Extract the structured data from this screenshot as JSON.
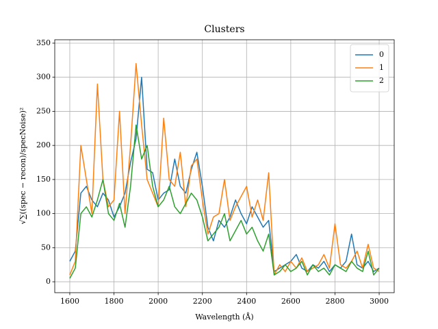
{
  "chart_data": {
    "type": "line",
    "title": "Clusters",
    "xlabel": "Wavelength (Å)",
    "ylabel": "√∑((spec − recon)/specNoise)²",
    "x": [
      1600,
      1625,
      1650,
      1675,
      1700,
      1725,
      1750,
      1775,
      1800,
      1825,
      1850,
      1875,
      1900,
      1925,
      1950,
      1975,
      2000,
      2025,
      2050,
      2075,
      2100,
      2125,
      2150,
      2175,
      2200,
      2225,
      2250,
      2275,
      2300,
      2325,
      2350,
      2375,
      2400,
      2425,
      2450,
      2475,
      2500,
      2525,
      2550,
      2575,
      2600,
      2625,
      2650,
      2675,
      2700,
      2725,
      2750,
      2775,
      2800,
      2825,
      2850,
      2875,
      2900,
      2925,
      2950,
      2975,
      3000
    ],
    "series": [
      {
        "name": "0",
        "color": "#1f77b4",
        "values": [
          30,
          45,
          130,
          140,
          120,
          110,
          130,
          120,
          95,
          110,
          130,
          175,
          210,
          300,
          165,
          160,
          120,
          130,
          135,
          180,
          140,
          130,
          165,
          190,
          140,
          80,
          60,
          90,
          80,
          95,
          120,
          100,
          85,
          110,
          95,
          80,
          90,
          15,
          20,
          25,
          30,
          40,
          20,
          15,
          25,
          20,
          30,
          15,
          25,
          20,
          30,
          70,
          25,
          20,
          30,
          15,
          20
        ]
      },
      {
        "name": "1",
        "color": "#ff7f0e",
        "values": [
          10,
          30,
          200,
          150,
          100,
          290,
          150,
          110,
          120,
          250,
          100,
          200,
          320,
          230,
          150,
          130,
          110,
          240,
          150,
          140,
          190,
          110,
          170,
          180,
          120,
          70,
          95,
          100,
          150,
          90,
          110,
          125,
          140,
          95,
          120,
          90,
          160,
          10,
          25,
          15,
          30,
          20,
          35,
          15,
          20,
          25,
          40,
          20,
          85,
          25,
          20,
          30,
          45,
          20,
          55,
          20,
          15
        ]
      },
      {
        "name": "2",
        "color": "#2ca02c",
        "values": [
          5,
          20,
          100,
          110,
          95,
          120,
          150,
          100,
          90,
          115,
          80,
          140,
          230,
          180,
          200,
          140,
          110,
          120,
          140,
          110,
          100,
          115,
          130,
          120,
          95,
          60,
          70,
          80,
          100,
          60,
          75,
          90,
          70,
          80,
          60,
          45,
          70,
          10,
          15,
          25,
          15,
          20,
          30,
          10,
          25,
          15,
          20,
          10,
          25,
          20,
          15,
          30,
          20,
          15,
          45,
          10,
          20
        ]
      }
    ],
    "xlim": [
      1532,
      3068
    ],
    "ylim": [
      -16,
      355
    ],
    "xticks": [
      1600,
      1800,
      2000,
      2200,
      2400,
      2600,
      2800,
      3000
    ],
    "yticks": [
      0,
      50,
      100,
      150,
      200,
      250,
      300,
      350
    ],
    "grid": true,
    "legend": "upper right"
  }
}
